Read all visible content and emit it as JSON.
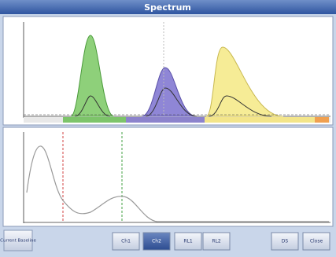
{
  "window": {
    "title": "Spectrum"
  },
  "footer": {
    "label": "Current Baseline",
    "buttons": [
      "Ch1",
      "Ch2",
      "RL1",
      "RL2",
      "DS",
      "Close"
    ]
  }
}
